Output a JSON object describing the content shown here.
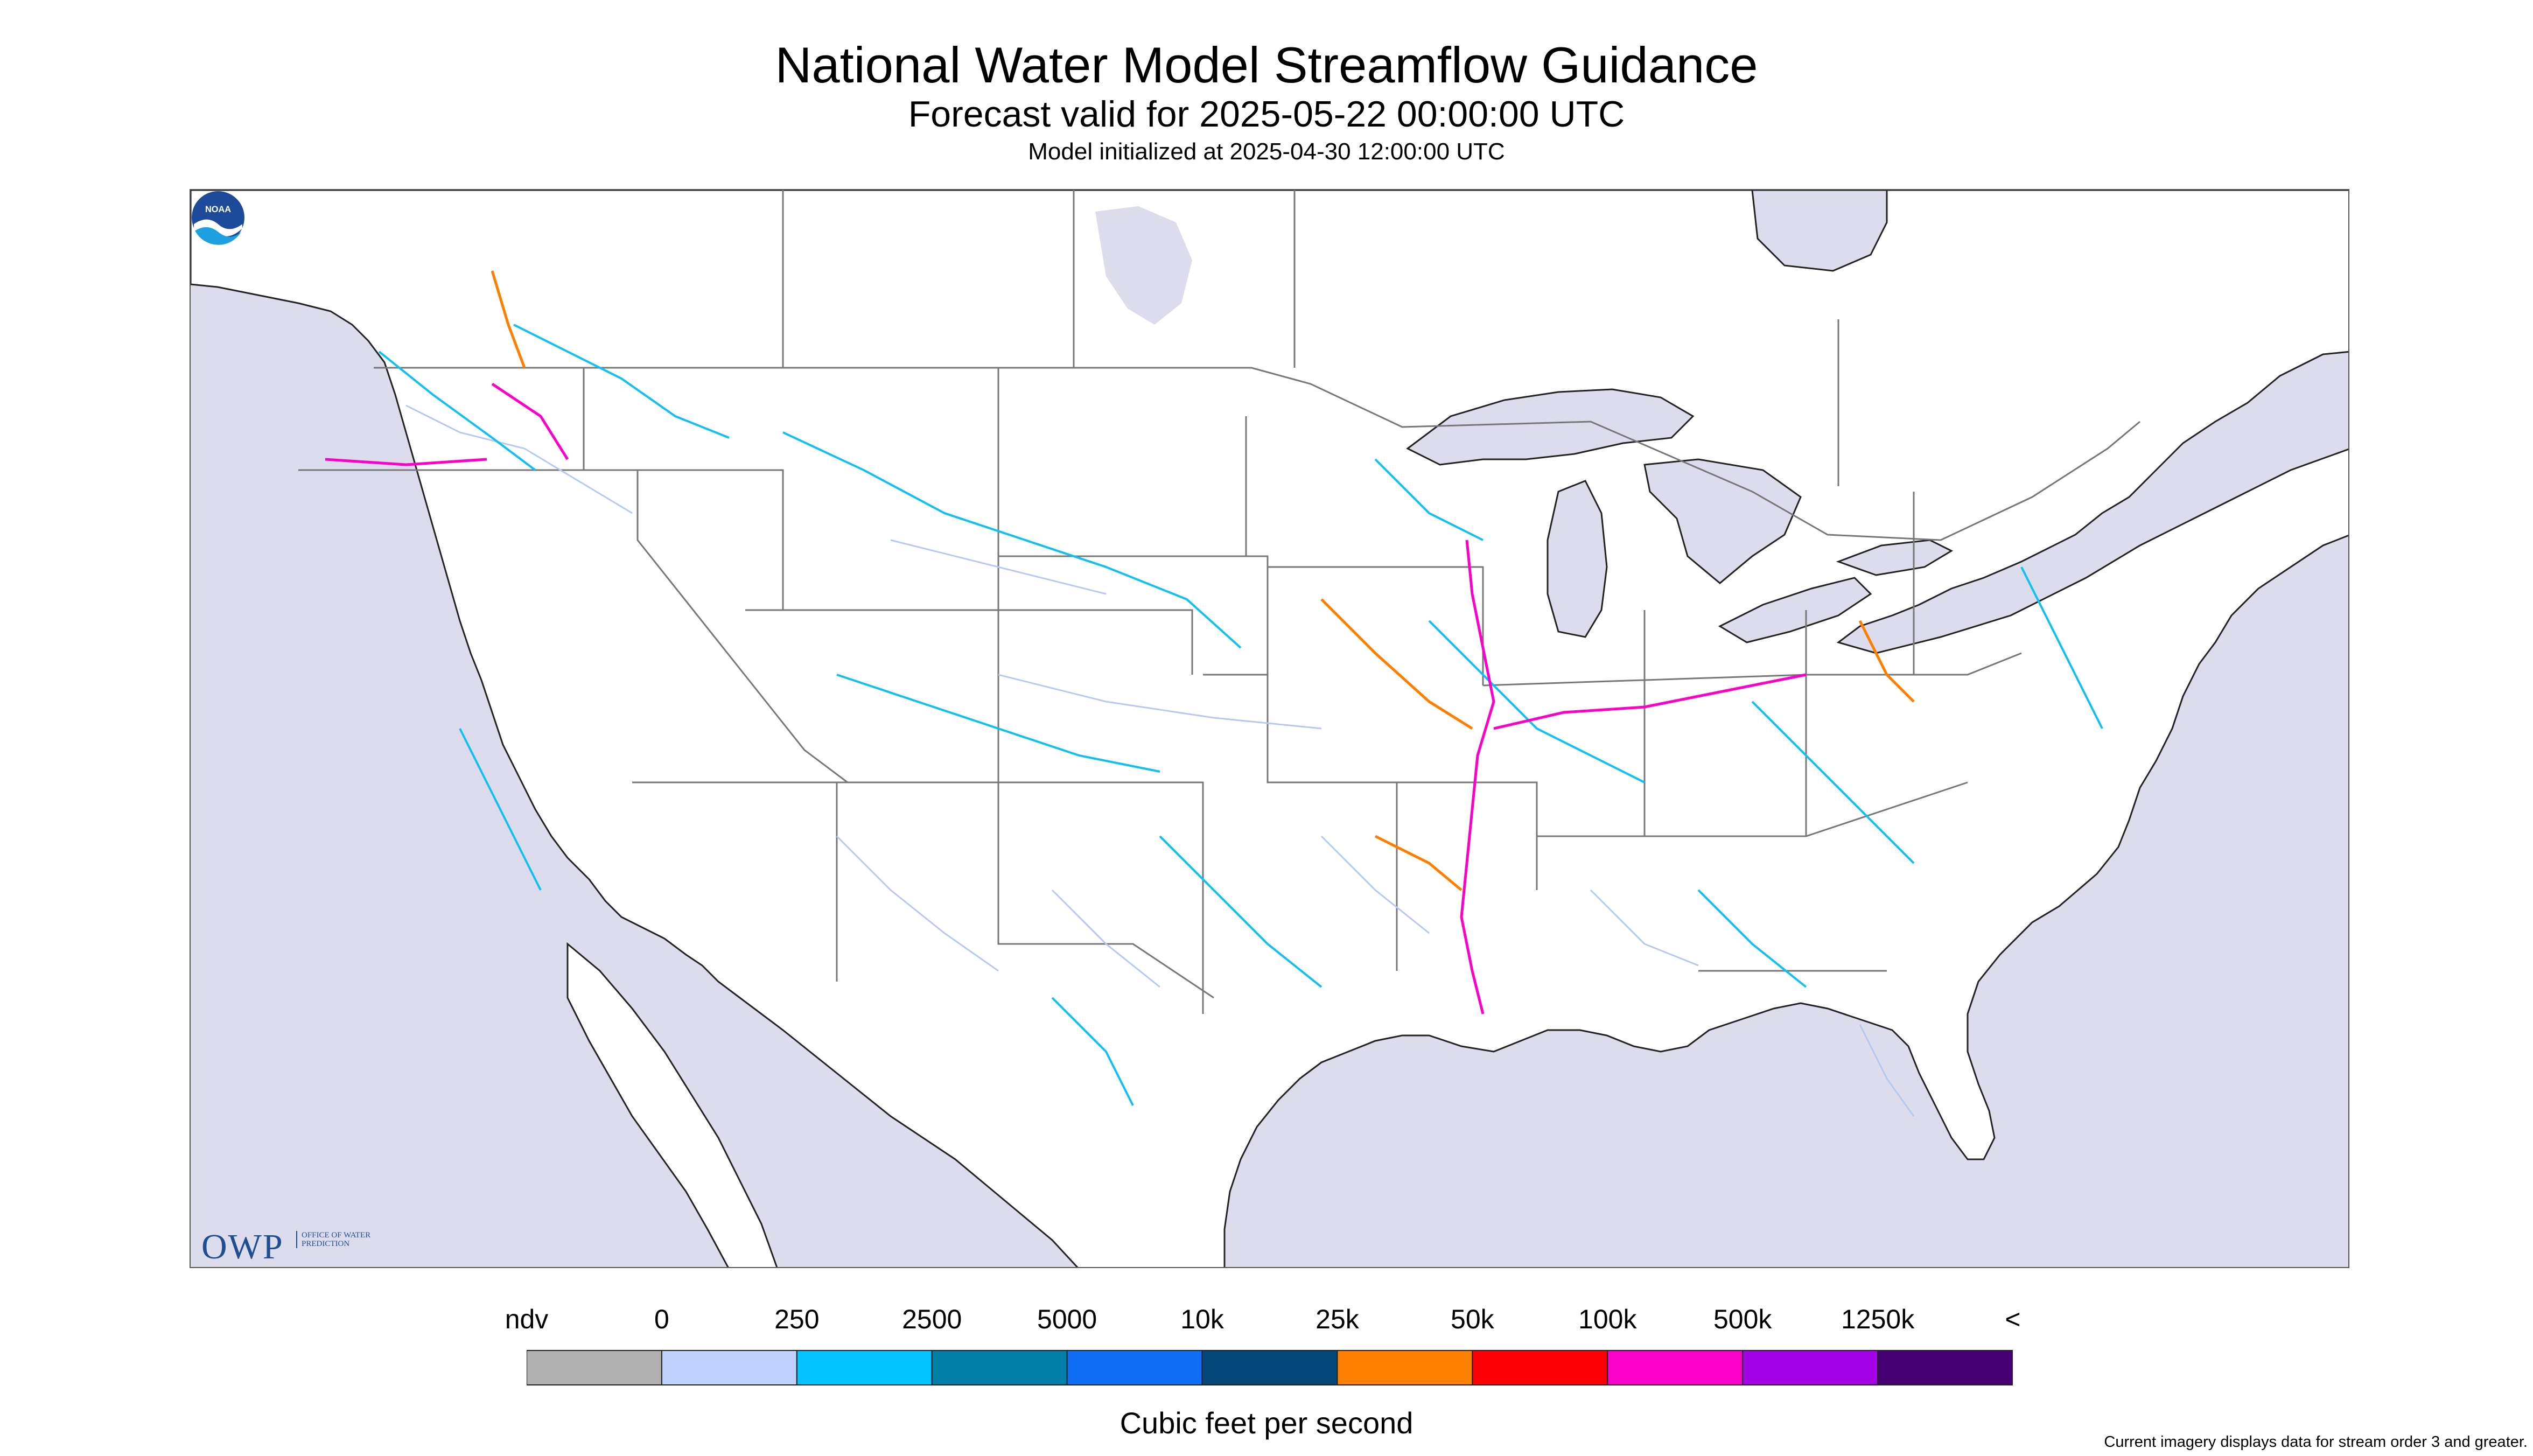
{
  "header": {
    "title": "National Water Model Streamflow Guidance",
    "subtitle": "Forecast valid for 2025-05-22 00:00:00 UTC",
    "init": "Model initialized at 2025-04-30 12:00:00 UTC"
  },
  "logos": {
    "owp_text": "OWP",
    "owp_small": "OFFICE OF WATER PREDICTION",
    "noaa_text": "NOAA"
  },
  "colors": {
    "water": "#dcdcec",
    "land": "#ffffff",
    "border": "#555555",
    "river_small": "#b8c8f0",
    "river_medium": "#11c0f0"
  },
  "legend": {
    "labels": [
      "ndv",
      "0",
      "250",
      "2500",
      "5000",
      "10k",
      "25k",
      "50k",
      "100k",
      "500k",
      "1250k",
      "<"
    ],
    "colors": [
      "#b0b0b0",
      "#bfd2fb",
      "#00c3ff",
      "#007fa8",
      "#0f6ef5",
      "#034879",
      "#fd7f00",
      "#fc0006",
      "#fb00c8",
      "#a400e6",
      "#470074"
    ],
    "unit": "Cubic feet per second",
    "note": "Current imagery displays data for stream order 3 and greater."
  }
}
